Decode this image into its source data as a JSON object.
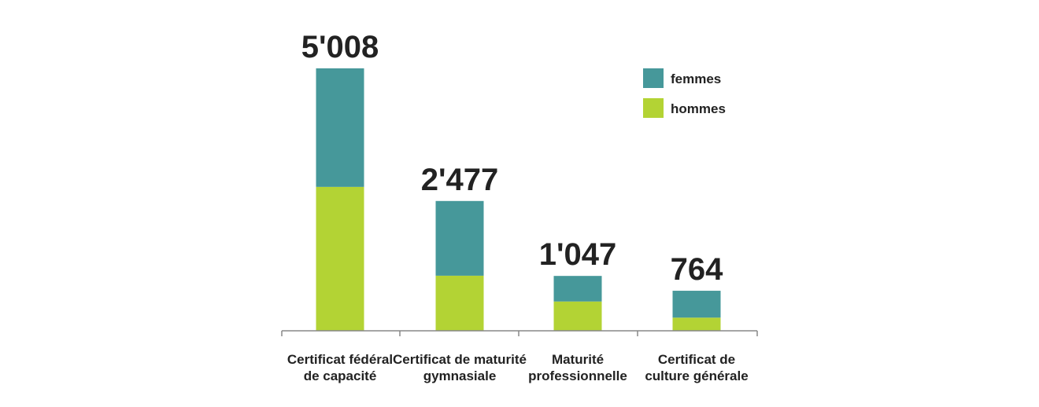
{
  "chart_data": {
    "type": "bar",
    "stacked": true,
    "categories": [
      [
        "Certificat fédéral",
        "de capacité"
      ],
      [
        "Certificat de maturité",
        "gymnasiale"
      ],
      [
        "Maturité",
        "professionnelle"
      ],
      [
        "Certificat de",
        "culture générale"
      ]
    ],
    "totals_labels": [
      "5'008",
      "2'477",
      "1'047",
      "764"
    ],
    "totals": [
      5008,
      2477,
      1047,
      764
    ],
    "series": [
      {
        "name": "hommes",
        "values": [
          2746,
          1051,
          559,
          251
        ],
        "color": "#b3d334"
      },
      {
        "name": "femmes",
        "values": [
          2262,
          1426,
          488,
          513
        ],
        "color": "#46989a"
      }
    ],
    "legend_order": [
      "femmes",
      "hommes"
    ],
    "ylim": [
      0,
      5008
    ],
    "grid": false,
    "legend_position": "top-right"
  }
}
